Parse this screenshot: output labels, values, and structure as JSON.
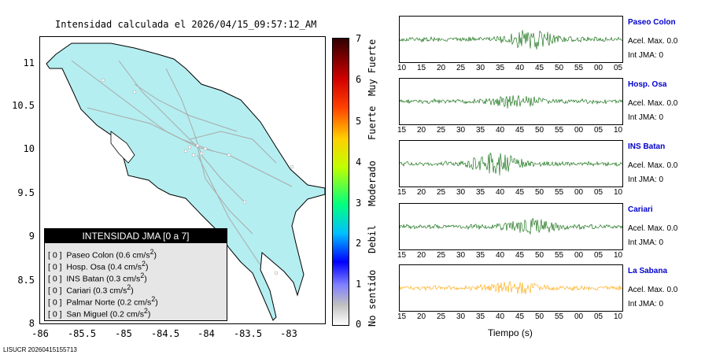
{
  "title": "Intensidad calculada el 2026/04/15_09:57:12_AM",
  "map": {
    "y_ticks": [
      "11",
      "10.5",
      "10",
      "9.5",
      "9",
      "8.5",
      "8"
    ],
    "x_ticks": [
      "-86",
      "-85.5",
      "-85",
      "-84.5",
      "-84",
      "-83.5",
      "-83"
    ],
    "fill_color": "#b4eef0"
  },
  "colorbar": {
    "ticks": [
      "7",
      "6",
      "5",
      "4",
      "3",
      "2",
      "1",
      "0"
    ],
    "words": [
      "Muy Fuerte",
      "Fuerte",
      "Moderado",
      "Debil",
      "No sentido"
    ]
  },
  "legend": {
    "title": "INTENSIDAD JMA [0 a 7]",
    "items": [
      {
        "code": "[ 0 ]",
        "text": "Paseo Colon (0.6 cm/s",
        "sup": "2",
        "close": ")"
      },
      {
        "code": "[ 0 ]",
        "text": "Hosp. Osa (0.4 cm/s",
        "sup": "2",
        "close": ")"
      },
      {
        "code": "[ 0 ]",
        "text": "INS Batan (0.3 cm/s",
        "sup": "2",
        "close": ")"
      },
      {
        "code": "[ 0 ]",
        "text": "Cariari (0.3 cm/s",
        "sup": "2",
        "close": ")"
      },
      {
        "code": "[ 0 ]",
        "text": "Palmar Norte (0.2 cm/s",
        "sup": "2",
        "close": ")"
      },
      {
        "code": "[ 0 ]",
        "text": "San Miguel (0.2 cm/s",
        "sup": "2",
        "close": ")"
      }
    ]
  },
  "stations": [
    {
      "name": "Paseo Colon",
      "acel": "Acel. Max. 0.0",
      "jma": "Int JMA: 0",
      "color": "#006400",
      "ticks": [
        "10",
        "15",
        "20",
        "25",
        "30",
        "35",
        "40",
        "45",
        "50",
        "55",
        "00",
        "05"
      ],
      "seed": 3,
      "peak": 0.55
    },
    {
      "name": "Hosp. Osa",
      "acel": "Acel. Max. 0.0",
      "jma": "Int JMA: 0",
      "color": "#006400",
      "ticks": [
        "15",
        "20",
        "25",
        "30",
        "35",
        "40",
        "45",
        "50",
        "55",
        "00",
        "05",
        "10"
      ],
      "seed": 7,
      "peak": 0.35
    },
    {
      "name": "INS Batan",
      "acel": "Acel. Max. 0.0",
      "jma": "Int JMA: 0",
      "color": "#006400",
      "ticks": [
        "15",
        "20",
        "25",
        "30",
        "35",
        "40",
        "45",
        "50",
        "55",
        "00",
        "05",
        "10"
      ],
      "seed": 11,
      "peak": 0.6
    },
    {
      "name": "Cariari",
      "acel": "Acel. Max. 0.0",
      "jma": "Int JMA: 0",
      "color": "#006400",
      "ticks": [
        "15",
        "20",
        "25",
        "30",
        "35",
        "40",
        "45",
        "50",
        "55",
        "00",
        "05",
        "10"
      ],
      "seed": 13,
      "peak": 0.45
    },
    {
      "name": "La Sabana",
      "acel": "Acel. Max. 0.0",
      "jma": "Int JMA: 0",
      "color": "#ffa500",
      "ticks": [
        "15",
        "20",
        "25",
        "30",
        "35",
        "40",
        "45",
        "50",
        "55",
        "00",
        "05",
        "10"
      ],
      "seed": 17,
      "peak": 0.35
    }
  ],
  "xaxis_label": "Tiempo (s)",
  "footer": "LISUCR 20260415155713"
}
